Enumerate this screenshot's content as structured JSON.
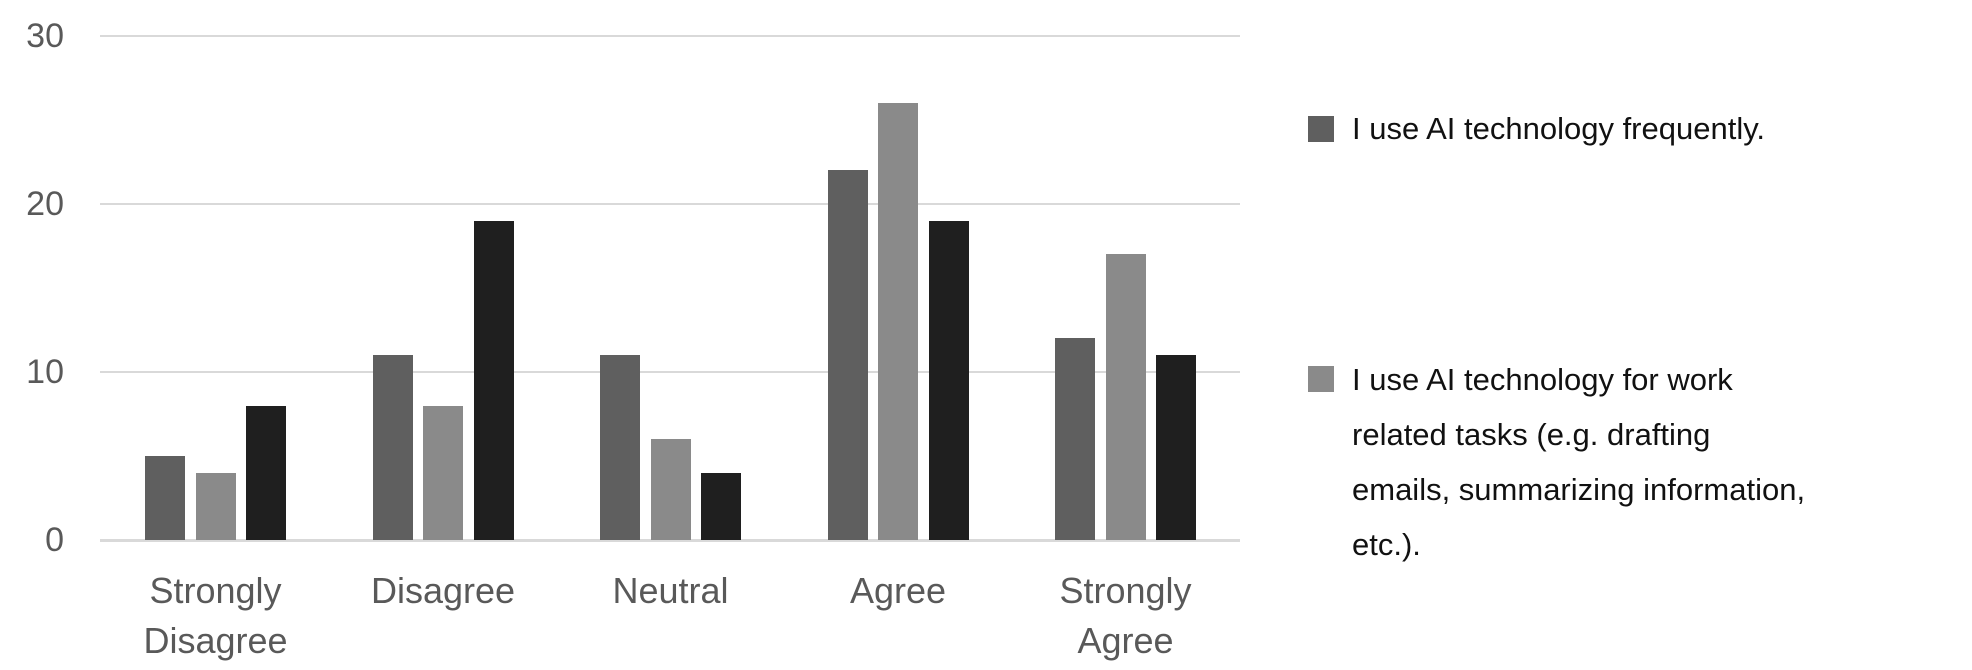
{
  "chart_data": {
    "type": "bar",
    "title": "",
    "categories": [
      "Strongly Disagree",
      "Disagree",
      "Neutral",
      "Agree",
      "Strongly Agree"
    ],
    "series": [
      {
        "name": "I use AI technology frequently.",
        "color": "#5f5f5f",
        "values": [
          5,
          11,
          11,
          22,
          12
        ]
      },
      {
        "name": "I use AI technology for work related tasks (e.g. drafting emails, summarizing information, etc.).",
        "color": "#8a8a8a",
        "values": [
          4,
          8,
          6,
          26,
          17
        ]
      },
      {
        "name": "",
        "color": "#1f1f1f",
        "values": [
          8,
          19,
          4,
          19,
          11
        ]
      }
    ],
    "ylim": [
      0,
      30
    ],
    "yticks": [
      0,
      10,
      20,
      30
    ],
    "grid": true,
    "legend_position": "right"
  },
  "legend": {
    "entries": [
      {
        "label": "I use AI technology frequently.",
        "color": "#5f5f5f"
      },
      {
        "label": "I use AI technology for work\nrelated tasks (e.g. drafting\nemails, summarizing information,\netc.).",
        "color": "#8a8a8a"
      }
    ]
  },
  "colors": {
    "gridline": "#d9d9d9",
    "axis_text": "#595959",
    "legend_text": "#111111",
    "background": "#ffffff"
  }
}
